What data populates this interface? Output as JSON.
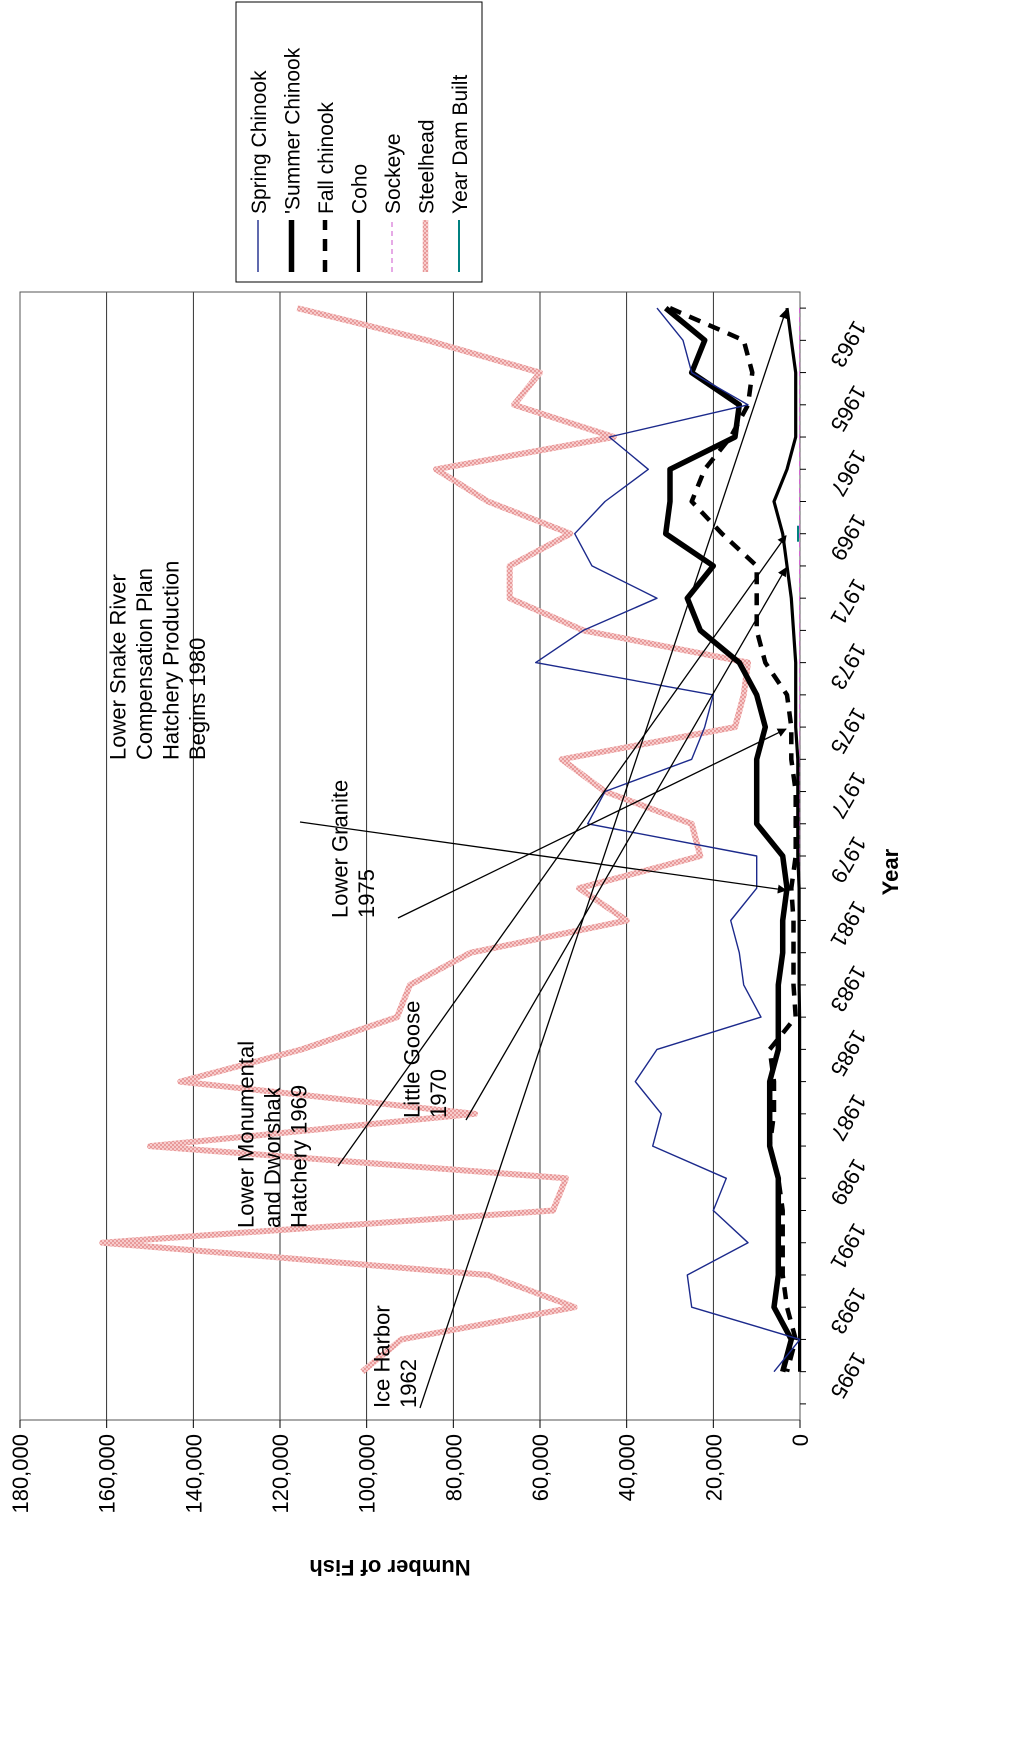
{
  "chart_data": {
    "type": "line",
    "orientation": "rotated 90 degrees clockwise (value axis along left edge, year axis along bottom)",
    "xlabel": "Year",
    "ylabel": "Number of Fish",
    "xticks": [
      "1963",
      "1965",
      "1967",
      "1969",
      "1971",
      "1973",
      "1975",
      "1977",
      "1979",
      "1981",
      "1983",
      "1985",
      "1987",
      "1989",
      "1991",
      "1993",
      "1995"
    ],
    "yticks": [
      "0",
      "20,000",
      "40,000",
      "60,000",
      "80,000",
      "100,000",
      "120,000",
      "140,000",
      "160,000",
      "180,000"
    ],
    "xlim": [
      1961.5,
      1996.5
    ],
    "ylim": [
      0,
      180000
    ],
    "grid": "horizontal value gridlines (vertical on screen)",
    "legend_position": "top-right",
    "series": [
      {
        "name": "Spring Chinook",
        "color": "#1c2a8c",
        "style": "thin solid",
        "x": [
          1962,
          1963,
          1964,
          1965,
          1966,
          1967,
          1968,
          1969,
          1970,
          1971,
          1972,
          1973,
          1974,
          1975,
          1976,
          1977,
          1978,
          1979,
          1980,
          1981,
          1982,
          1983,
          1984,
          1985,
          1986,
          1987,
          1988,
          1989,
          1990,
          1991,
          1992,
          1993,
          1994,
          1995
        ],
        "y": [
          33000,
          27000,
          25000,
          12000,
          44000,
          35000,
          45000,
          52000,
          48000,
          33000,
          50000,
          61000,
          20000,
          22000,
          25000,
          45000,
          49000,
          10000,
          10000,
          16000,
          14000,
          13000,
          9000,
          33000,
          38000,
          32000,
          34000,
          17000,
          20000,
          12000,
          26000,
          25000,
          0,
          6000
        ]
      },
      {
        "name": "'Summer Chinook",
        "color": "#000000",
        "style": "thick solid",
        "x": [
          1962,
          1963,
          1964,
          1965,
          1966,
          1967,
          1968,
          1969,
          1970,
          1971,
          1972,
          1973,
          1974,
          1975,
          1976,
          1977,
          1978,
          1979,
          1980,
          1981,
          1982,
          1983,
          1984,
          1985,
          1986,
          1987,
          1988,
          1989,
          1990,
          1991,
          1992,
          1993,
          1994,
          1995
        ],
        "y": [
          31000,
          22000,
          25000,
          14000,
          15000,
          30000,
          30000,
          31000,
          20000,
          26000,
          23000,
          14000,
          10000,
          8000,
          10000,
          10000,
          10000,
          4000,
          3000,
          4000,
          4000,
          5000,
          5000,
          5000,
          7000,
          7000,
          7000,
          5000,
          5000,
          5000,
          5000,
          6000,
          2000,
          4000
        ]
      },
      {
        "name": "Fall chinook",
        "color": "#000000",
        "style": "thick dashed",
        "x": [
          1962,
          1963,
          1964,
          1965,
          1966,
          1967,
          1968,
          1969,
          1970,
          1971,
          1972,
          1973,
          1974,
          1975,
          1976,
          1977,
          1978,
          1979,
          1980,
          1981,
          1982,
          1983,
          1984,
          1985,
          1986,
          1987,
          1988,
          1989,
          1990,
          1991,
          1992,
          1993,
          1994,
          1995
        ],
        "y": [
          30000,
          13000,
          11000,
          12000,
          16000,
          22000,
          25000,
          18000,
          10000,
          10000,
          10000,
          8000,
          3000,
          2000,
          2000,
          1000,
          1000,
          1000,
          2000,
          1500,
          1500,
          1500,
          1000,
          7000,
          6000,
          6000,
          7000,
          5000,
          4000,
          4000,
          4000,
          3000,
          1000,
          3000
        ]
      },
      {
        "name": "Coho",
        "color": "#000000",
        "style": "medium solid",
        "x": [
          1962,
          1963,
          1964,
          1965,
          1966,
          1967,
          1968,
          1969,
          1970,
          1971,
          1972,
          1973,
          1974,
          1975,
          1976,
          1977,
          1978,
          1979,
          1980,
          1981,
          1982,
          1983,
          1984,
          1985,
          1986,
          1987,
          1988,
          1989,
          1990,
          1991,
          1992,
          1993,
          1994,
          1995
        ],
        "y": [
          3000,
          2000,
          1000,
          1000,
          1000,
          3000,
          6000,
          4000,
          3000,
          2000,
          1500,
          1000,
          1000,
          1000,
          500,
          500,
          500,
          500,
          200,
          200,
          200,
          200,
          100,
          100,
          100,
          100,
          100,
          100,
          100,
          100,
          100,
          100,
          100,
          100
        ]
      },
      {
        "name": "Sockeye",
        "color": "#cc55cc",
        "style": "thin dashed",
        "x": [
          1962,
          1963,
          1964,
          1965,
          1966,
          1967,
          1968,
          1969,
          1970,
          1971,
          1972,
          1973,
          1974,
          1975,
          1976,
          1977,
          1978,
          1979,
          1980,
          1981,
          1982,
          1983,
          1984,
          1985,
          1986,
          1987,
          1988,
          1989,
          1990,
          1991,
          1992,
          1993,
          1994,
          1995
        ],
        "y": [
          100,
          100,
          100,
          100,
          100,
          100,
          100,
          100,
          100,
          100,
          100,
          100,
          100,
          100,
          100,
          100,
          100,
          100,
          100,
          100,
          100,
          100,
          100,
          100,
          100,
          100,
          100,
          100,
          100,
          100,
          100,
          100,
          100,
          100
        ]
      },
      {
        "name": "Steelhead",
        "color": "#f2b4b4",
        "style": "thick textured",
        "x": [
          1962,
          1963,
          1964,
          1965,
          1966,
          1967,
          1968,
          1969,
          1970,
          1971,
          1972,
          1973,
          1974,
          1975,
          1976,
          1977,
          1978,
          1979,
          1980,
          1981,
          1982,
          1983,
          1984,
          1985,
          1986,
          1987,
          1988,
          1989,
          1990,
          1991,
          1992,
          1993,
          1994,
          1995
        ],
        "y": [
          116000,
          86000,
          60000,
          66000,
          43000,
          84000,
          72000,
          53000,
          67000,
          67000,
          50000,
          12000,
          13000,
          15000,
          55000,
          45000,
          25000,
          23000,
          51000,
          40000,
          76000,
          90000,
          93000,
          115000,
          143000,
          75000,
          150000,
          54000,
          57000,
          161000,
          72000,
          52000,
          92000,
          101000
        ]
      },
      {
        "name": "Year Dam Built",
        "color": "#008080",
        "style": "thin solid",
        "x": [
          1969
        ],
        "y": [
          0
        ]
      }
    ],
    "annotations": [
      {
        "text": "Ice Harbor\n1962",
        "year": 1962,
        "value": 0
      },
      {
        "text": "Lower Monumental\nand Dworshak\nHatchery 1969",
        "year": 1969,
        "value": 0
      },
      {
        "text": "Little Goose\n1970",
        "year": 1970,
        "value": 0
      },
      {
        "text": "Lower Granite\n1975",
        "year": 1975,
        "value": 0
      },
      {
        "text": "Lower Snake River\nCompensation Plan\nHatchery Production\nBegins 1980",
        "year": 1980,
        "value": 0
      }
    ]
  }
}
